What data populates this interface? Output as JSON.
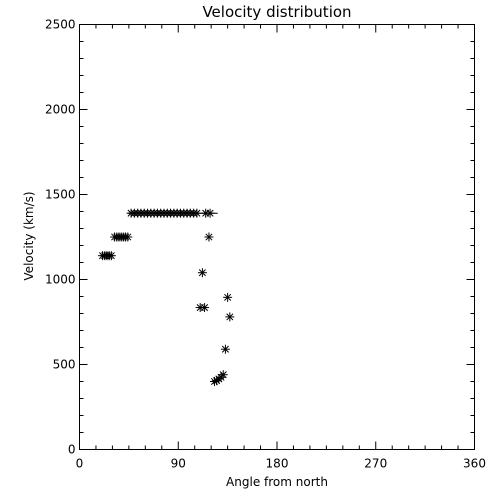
{
  "chart_data": {
    "type": "scatter",
    "title": "Velocity distribution",
    "xlabel": "Angle from north",
    "ylabel": "Velocity (km/s)",
    "xlim": [
      0,
      360
    ],
    "ylim": [
      0,
      2500
    ],
    "xticks": [
      0,
      90,
      180,
      270,
      360
    ],
    "yticks": [
      0,
      500,
      1000,
      1500,
      2000,
      2500
    ],
    "grid": false,
    "marker": "asterisk",
    "points": [
      {
        "x": 21,
        "y": 1140
      },
      {
        "x": 23,
        "y": 1140
      },
      {
        "x": 25,
        "y": 1140
      },
      {
        "x": 27,
        "y": 1140
      },
      {
        "x": 29,
        "y": 1140
      },
      {
        "x": 32,
        "y": 1250
      },
      {
        "x": 34,
        "y": 1250
      },
      {
        "x": 36,
        "y": 1250
      },
      {
        "x": 38,
        "y": 1250
      },
      {
        "x": 40,
        "y": 1250
      },
      {
        "x": 42,
        "y": 1250
      },
      {
        "x": 44,
        "y": 1250
      },
      {
        "x": 47,
        "y": 1390
      },
      {
        "x": 50,
        "y": 1390
      },
      {
        "x": 53,
        "y": 1390
      },
      {
        "x": 56,
        "y": 1390
      },
      {
        "x": 59,
        "y": 1390
      },
      {
        "x": 62,
        "y": 1390
      },
      {
        "x": 65,
        "y": 1390
      },
      {
        "x": 68,
        "y": 1390
      },
      {
        "x": 71,
        "y": 1390
      },
      {
        "x": 74,
        "y": 1390
      },
      {
        "x": 77,
        "y": 1390
      },
      {
        "x": 80,
        "y": 1390
      },
      {
        "x": 83,
        "y": 1390
      },
      {
        "x": 86,
        "y": 1390
      },
      {
        "x": 89,
        "y": 1390
      },
      {
        "x": 92,
        "y": 1390
      },
      {
        "x": 95,
        "y": 1390
      },
      {
        "x": 98,
        "y": 1390
      },
      {
        "x": 101,
        "y": 1390
      },
      {
        "x": 104,
        "y": 1390
      },
      {
        "x": 107,
        "y": 1390
      },
      {
        "x": 115,
        "y": 1390
      },
      {
        "x": 119,
        "y": 1390
      },
      {
        "x": 118,
        "y": 1250
      },
      {
        "x": 112,
        "y": 1040
      },
      {
        "x": 110,
        "y": 835
      },
      {
        "x": 114,
        "y": 835
      },
      {
        "x": 135,
        "y": 895
      },
      {
        "x": 137,
        "y": 780
      },
      {
        "x": 133,
        "y": 590
      },
      {
        "x": 123,
        "y": 400
      },
      {
        "x": 125,
        "y": 405
      },
      {
        "x": 127,
        "y": 415
      },
      {
        "x": 129,
        "y": 425
      },
      {
        "x": 131,
        "y": 440
      }
    ],
    "reference_line": {
      "x_start": 44,
      "x_end": 126,
      "y": 1390
    }
  }
}
